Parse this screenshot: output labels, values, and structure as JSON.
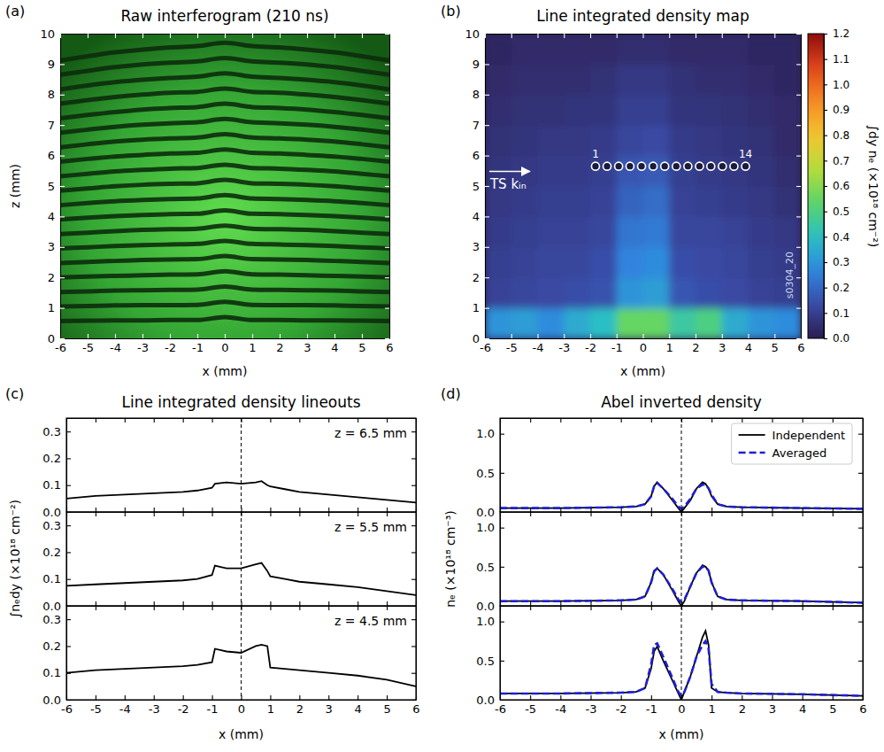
{
  "chart_data": [
    {
      "type": "interferogram",
      "panel": "(a)",
      "title": "Raw interferogram (210 ns)",
      "xlabel": "x (mm)",
      "ylabel": "z (mm)",
      "xlim": [
        -6,
        6
      ],
      "xticks": [
        -6,
        -5,
        -4,
        -3,
        -2,
        -1,
        0,
        1,
        2,
        3,
        4,
        5,
        6
      ],
      "ylim": [
        0,
        10
      ],
      "yticks": [
        0,
        1,
        2,
        3,
        4,
        5,
        6,
        7,
        8,
        9,
        10
      ],
      "color": "#0c2c0c",
      "x": [
        -6,
        -5,
        -4,
        -3,
        -2,
        -1,
        0,
        1,
        2,
        3,
        4,
        5,
        6
      ],
      "fringes": [
        {
          "values": [
            0.57,
            0.58,
            0.59,
            0.59,
            0.6,
            0.6,
            0.7,
            0.6,
            0.6,
            0.59,
            0.59,
            0.58,
            0.57
          ]
        },
        {
          "values": [
            1.05,
            1.06,
            1.08,
            1.09,
            1.09,
            1.1,
            1.2,
            1.1,
            1.09,
            1.09,
            1.08,
            1.06,
            1.05
          ]
        },
        {
          "values": [
            1.52,
            1.54,
            1.57,
            1.58,
            1.59,
            1.6,
            1.7,
            1.6,
            1.59,
            1.58,
            1.57,
            1.54,
            1.52
          ]
        },
        {
          "values": [
            2.0,
            2.03,
            2.05,
            2.07,
            2.09,
            2.1,
            2.2,
            2.1,
            2.09,
            2.07,
            2.05,
            2.03,
            2.0
          ]
        },
        {
          "values": [
            2.47,
            2.51,
            2.54,
            2.57,
            2.59,
            2.6,
            2.7,
            2.6,
            2.59,
            2.57,
            2.54,
            2.51,
            2.47
          ]
        },
        {
          "values": [
            2.95,
            2.99,
            3.03,
            3.06,
            3.08,
            3.1,
            3.2,
            3.1,
            3.08,
            3.06,
            3.03,
            2.99,
            2.95
          ]
        },
        {
          "values": [
            3.42,
            3.47,
            3.52,
            3.56,
            3.58,
            3.6,
            3.7,
            3.6,
            3.58,
            3.56,
            3.52,
            3.47,
            3.42
          ]
        },
        {
          "values": [
            3.9,
            3.96,
            4.01,
            4.05,
            4.08,
            4.09,
            4.2,
            4.09,
            4.08,
            4.05,
            4.01,
            3.96,
            3.9
          ]
        },
        {
          "values": [
            4.37,
            4.44,
            4.5,
            4.54,
            4.57,
            4.59,
            4.7,
            4.59,
            4.57,
            4.54,
            4.5,
            4.44,
            4.37
          ]
        },
        {
          "values": [
            4.85,
            4.92,
            4.99,
            5.04,
            5.07,
            5.09,
            5.2,
            5.09,
            5.07,
            5.04,
            4.99,
            4.92,
            4.85
          ]
        },
        {
          "values": [
            5.32,
            5.4,
            5.48,
            5.53,
            5.57,
            5.59,
            5.7,
            5.59,
            5.57,
            5.53,
            5.48,
            5.4,
            5.32
          ]
        },
        {
          "values": [
            5.8,
            5.89,
            5.97,
            6.02,
            6.07,
            6.09,
            6.2,
            6.09,
            6.07,
            6.02,
            5.97,
            5.89,
            5.8
          ]
        },
        {
          "values": [
            6.27,
            6.37,
            6.46,
            6.52,
            6.56,
            6.59,
            6.7,
            6.59,
            6.56,
            6.52,
            6.46,
            6.37,
            6.27
          ]
        },
        {
          "values": [
            6.75,
            6.85,
            6.94,
            7.01,
            7.06,
            7.09,
            7.2,
            7.09,
            7.06,
            7.01,
            6.94,
            6.85,
            6.75
          ]
        },
        {
          "values": [
            7.22,
            7.33,
            7.43,
            7.51,
            7.56,
            7.59,
            7.7,
            7.59,
            7.56,
            7.51,
            7.43,
            7.33,
            7.22
          ]
        },
        {
          "values": [
            7.7,
            7.82,
            7.92,
            8.0,
            8.06,
            8.09,
            8.2,
            8.09,
            8.06,
            8.0,
            7.92,
            7.82,
            7.7
          ]
        },
        {
          "values": [
            8.17,
            8.3,
            8.41,
            8.49,
            8.55,
            8.59,
            8.7,
            8.59,
            8.55,
            8.49,
            8.41,
            8.3,
            8.17
          ]
        },
        {
          "values": [
            8.65,
            8.78,
            8.9,
            8.99,
            9.05,
            9.09,
            9.2,
            9.09,
            9.05,
            8.99,
            8.9,
            8.78,
            8.65
          ]
        },
        {
          "values": [
            9.12,
            9.26,
            9.39,
            9.48,
            9.55,
            9.59,
            9.7,
            9.59,
            9.55,
            9.48,
            9.39,
            9.26,
            9.12
          ]
        }
      ]
    },
    {
      "type": "heatmap",
      "panel": "(b)",
      "title": "Line integrated density map",
      "xlabel": "x (mm)",
      "xlim": [
        -6,
        6
      ],
      "xticks": [
        -6,
        -5,
        -4,
        -3,
        -2,
        -1,
        0,
        1,
        2,
        3,
        4,
        5,
        6
      ],
      "ylim": [
        0,
        10
      ],
      "yticks": [
        0,
        1,
        2,
        3,
        4,
        5,
        6,
        7,
        8,
        9,
        10
      ],
      "x_edges": [
        -6,
        -5,
        -4,
        -3,
        -2,
        -1,
        0,
        1,
        2,
        3,
        4,
        5,
        6
      ],
      "z_edges": [
        0,
        1,
        2,
        3,
        4,
        5,
        6,
        7,
        8,
        9,
        10
      ],
      "cells": [
        [
          0.3,
          0.32,
          0.28,
          0.35,
          0.4,
          0.55,
          0.55,
          0.45,
          0.5,
          0.35,
          0.3,
          0.28
        ],
        [
          0.11,
          0.12,
          0.13,
          0.14,
          0.15,
          0.3,
          0.32,
          0.16,
          0.14,
          0.13,
          0.11,
          0.1
        ],
        [
          0.1,
          0.11,
          0.12,
          0.12,
          0.14,
          0.26,
          0.28,
          0.14,
          0.13,
          0.12,
          0.1,
          0.09
        ],
        [
          0.09,
          0.1,
          0.11,
          0.11,
          0.12,
          0.23,
          0.24,
          0.12,
          0.12,
          0.11,
          0.09,
          0.08
        ],
        [
          0.08,
          0.09,
          0.1,
          0.1,
          0.11,
          0.19,
          0.21,
          0.11,
          0.1,
          0.09,
          0.08,
          0.06
        ],
        [
          0.07,
          0.08,
          0.09,
          0.09,
          0.1,
          0.16,
          0.17,
          0.1,
          0.09,
          0.08,
          0.07,
          0.05
        ],
        [
          0.06,
          0.07,
          0.08,
          0.08,
          0.09,
          0.12,
          0.13,
          0.09,
          0.08,
          0.07,
          0.06,
          0.04
        ],
        [
          0.05,
          0.06,
          0.06,
          0.07,
          0.07,
          0.1,
          0.1,
          0.07,
          0.07,
          0.06,
          0.05,
          0.04
        ],
        [
          0.04,
          0.05,
          0.05,
          0.05,
          0.06,
          0.08,
          0.08,
          0.06,
          0.05,
          0.05,
          0.04,
          0.03
        ],
        [
          0.03,
          0.04,
          0.04,
          0.04,
          0.04,
          0.05,
          0.05,
          0.04,
          0.04,
          0.04,
          0.03,
          0.03
        ]
      ],
      "colorbar_label": "∫dy nₑ (×10¹⁸ cm⁻²)",
      "colorbar_lim": [
        0,
        1.2
      ],
      "colorbar_ticks": [
        {
          "value": 0,
          "label": "0.0"
        },
        {
          "value": 0.1,
          "label": "0.1"
        },
        {
          "value": 0.2,
          "label": "0.2"
        },
        {
          "value": 0.3,
          "label": "0.3"
        },
        {
          "value": 0.4,
          "label": "0.4"
        },
        {
          "value": 0.5,
          "label": "0.5"
        },
        {
          "value": 0.6,
          "label": "0.6"
        },
        {
          "value": 0.7,
          "label": "0.7"
        },
        {
          "value": 0.8,
          "label": "0.8"
        },
        {
          "value": 0.9,
          "label": "0.9"
        },
        {
          "value": 1,
          "label": "1.0"
        },
        {
          "value": 1.1,
          "label": "1.1"
        },
        {
          "value": 1.2,
          "label": "1.2"
        }
      ],
      "ts_points": {
        "x": [
          -1.8,
          -1.36,
          -0.92,
          -0.49,
          -0.05,
          0.39,
          0.83,
          1.27,
          1.71,
          2.15,
          2.58,
          3.02,
          3.46,
          3.9
        ],
        "z": [
          5.65,
          5.65,
          5.65,
          5.65,
          5.65,
          5.65,
          5.65,
          5.65,
          5.65,
          5.65,
          5.65,
          5.65,
          5.65,
          5.65
        ],
        "labels": [
          "1",
          null,
          null,
          null,
          null,
          null,
          null,
          null,
          null,
          null,
          null,
          null,
          null,
          "14"
        ]
      },
      "annotations": [
        {
          "text": "TS kᵢₙ",
          "x": -5.8,
          "z": 4.9,
          "marker": "arrow"
        },
        {
          "text": "s0304_20",
          "x": 5.7,
          "z": 1.3,
          "orientation": "vertical"
        }
      ]
    },
    {
      "type": "line",
      "panel": "(c)",
      "title": "Line integrated density lineouts",
      "xlabel": "x (mm)",
      "ylabel": "∫nₑdy (×10¹⁸ cm⁻²)",
      "xlim": [
        -6,
        6
      ],
      "xticks": [
        -6,
        -5,
        -4,
        -3,
        -2,
        -1,
        0,
        1,
        2,
        3,
        4,
        5,
        6
      ],
      "ylim": [
        0,
        0.35
      ],
      "yticks": [
        {
          "value": 0,
          "label": "0.0"
        },
        {
          "value": 0.1,
          "label": "0.1"
        },
        {
          "value": 0.2,
          "label": "0.2"
        },
        {
          "value": 0.3,
          "label": "0.3"
        }
      ],
      "vline": 0,
      "annotations": [
        "z = 6.5 mm",
        "z = 5.5 mm",
        "z = 4.5 mm"
      ],
      "x": [
        -6,
        -5,
        -4,
        -3,
        -2,
        -1.5,
        -1,
        -0.9,
        -0.5,
        0,
        0.5,
        0.7,
        0.9,
        1,
        1.5,
        2,
        3,
        4,
        5,
        6
      ],
      "series": [
        {
          "color": "#000000",
          "line_style": "solid",
          "values": [
            [
              0.05,
              0.06,
              0.065,
              0.07,
              0.075,
              0.08,
              0.09,
              0.105,
              0.11,
              0.105,
              0.11,
              0.115,
              0.1,
              0.095,
              0.085,
              0.075,
              0.065,
              0.055,
              0.045,
              0.035
            ],
            [
              0.075,
              0.08,
              0.085,
              0.09,
              0.095,
              0.1,
              0.115,
              0.15,
              0.14,
              0.14,
              0.155,
              0.16,
              0.13,
              0.11,
              0.1,
              0.09,
              0.08,
              0.07,
              0.055,
              0.04
            ],
            [
              0.1,
              0.11,
              0.115,
              0.12,
              0.125,
              0.13,
              0.14,
              0.19,
              0.18,
              0.175,
              0.2,
              0.205,
              0.2,
              0.12,
              0.115,
              0.11,
              0.1,
              0.09,
              0.075,
              0.05
            ]
          ]
        }
      ]
    },
    {
      "type": "line",
      "panel": "(d)",
      "title": "Abel inverted density",
      "xlabel": "x (mm)",
      "ylabel": "nₑ (×10¹⁸ cm⁻³)",
      "xlim": [
        -6,
        6
      ],
      "xticks": [
        -6,
        -5,
        -4,
        -3,
        -2,
        -1,
        0,
        1,
        2,
        3,
        4,
        5,
        6
      ],
      "ylim": [
        0,
        1.2
      ],
      "yticks": [
        {
          "value": 0,
          "label": "0.0"
        },
        {
          "value": 0.5,
          "label": "0.5"
        },
        {
          "value": 1,
          "label": "1.0"
        }
      ],
      "vline": 0,
      "legend": "upper right",
      "x": [
        -6,
        -4,
        -2,
        -1.5,
        -1.2,
        -1,
        -0.9,
        -0.8,
        -0.6,
        -0.3,
        -0.1,
        0,
        0.1,
        0.3,
        0.5,
        0.7,
        0.8,
        0.9,
        1,
        1.2,
        1.5,
        2,
        4,
        6
      ],
      "series": [
        {
          "name": "Independent",
          "color": "#000000",
          "line_style": "solid",
          "values": [
            [
              0.05,
              0.05,
              0.06,
              0.07,
              0.1,
              0.2,
              0.33,
              0.38,
              0.3,
              0.15,
              0.05,
              0,
              0.05,
              0.15,
              0.3,
              0.38,
              0.36,
              0.3,
              0.2,
              0.1,
              0.07,
              0.06,
              0.05,
              0.04
            ],
            [
              0.06,
              0.06,
              0.07,
              0.08,
              0.12,
              0.3,
              0.45,
              0.48,
              0.4,
              0.2,
              0.06,
              0,
              0.06,
              0.25,
              0.42,
              0.52,
              0.5,
              0.45,
              0.3,
              0.12,
              0.08,
              0.07,
              0.06,
              0.04
            ],
            [
              0.08,
              0.08,
              0.09,
              0.1,
              0.15,
              0.4,
              0.62,
              0.68,
              0.5,
              0.25,
              0.08,
              0,
              0.1,
              0.3,
              0.55,
              0.8,
              0.88,
              0.7,
              0.15,
              0.1,
              0.09,
              0.08,
              0.07,
              0.05
            ]
          ]
        },
        {
          "name": "Averaged",
          "color": "#1f1fd6",
          "line_style": "dashed",
          "values": [
            [
              0.05,
              0.05,
              0.06,
              0.07,
              0.1,
              0.2,
              0.33,
              0.37,
              0.3,
              0.17,
              0.07,
              0.04,
              0.07,
              0.17,
              0.3,
              0.35,
              0.35,
              0.3,
              0.22,
              0.1,
              0.07,
              0.06,
              0.05,
              0.04
            ],
            [
              0.06,
              0.06,
              0.07,
              0.08,
              0.12,
              0.3,
              0.44,
              0.48,
              0.4,
              0.22,
              0.08,
              0.05,
              0.08,
              0.25,
              0.42,
              0.5,
              0.5,
              0.45,
              0.3,
              0.12,
              0.08,
              0.07,
              0.06,
              0.04
            ],
            [
              0.08,
              0.08,
              0.09,
              0.1,
              0.15,
              0.45,
              0.7,
              0.72,
              0.55,
              0.28,
              0.1,
              0.05,
              0.1,
              0.3,
              0.55,
              0.7,
              0.75,
              0.65,
              0.2,
              0.1,
              0.09,
              0.08,
              0.07,
              0.05
            ]
          ]
        }
      ]
    }
  ]
}
